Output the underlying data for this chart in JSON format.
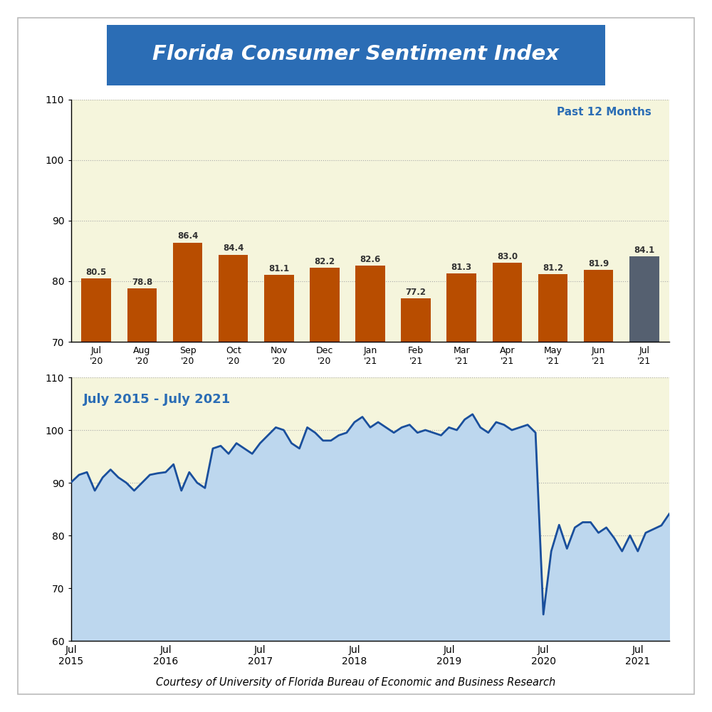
{
  "title": "Florida Consumer Sentiment Index",
  "title_bg_color": "#2B6DB5",
  "title_text_color": "#FFFFFF",
  "bar_categories": [
    "Jul\n'20",
    "Aug\n'20",
    "Sep\n'20",
    "Oct\n'20",
    "Nov\n'20",
    "Dec\n'20",
    "Jan\n'21",
    "Feb\n'21",
    "Mar\n'21",
    "Apr\n'21",
    "May\n'21",
    "Jun\n'21",
    "Jul\n'21"
  ],
  "bar_values": [
    80.5,
    78.8,
    86.4,
    84.4,
    81.1,
    82.2,
    82.6,
    77.2,
    81.3,
    83.0,
    81.2,
    81.9,
    84.1
  ],
  "bar_colors": [
    "#B84D00",
    "#B84D00",
    "#B84D00",
    "#B84D00",
    "#B84D00",
    "#B84D00",
    "#B84D00",
    "#B84D00",
    "#B84D00",
    "#B84D00",
    "#B84D00",
    "#B84D00",
    "#556070"
  ],
  "bar_ylim": [
    70,
    110
  ],
  "bar_yticks": [
    70,
    80,
    90,
    100,
    110
  ],
  "bar_bg_color": "#F5F5DC",
  "bar_label": "Past 12 Months",
  "bar_label_color": "#2B6DB5",
  "line_label": "July 2015 - July 2021",
  "line_label_color": "#2B6DB5",
  "line_color": "#1A4F9C",
  "line_fill_color": "#BDD7EE",
  "line_bg_color": "#F5F5DC",
  "line_ylim": [
    60,
    110
  ],
  "line_yticks": [
    60,
    70,
    80,
    90,
    100,
    110
  ],
  "line_xtick_labels": [
    "Jul\n2015",
    "Jul\n2016",
    "Jul\n2017",
    "Jul\n2018",
    "Jul\n2019",
    "Jul\n2020",
    "Jul\n2021"
  ],
  "line_xtick_positions": [
    0,
    12,
    24,
    36,
    48,
    60,
    72
  ],
  "line_data": [
    90.1,
    91.5,
    92.0,
    88.5,
    91.0,
    92.5,
    91.0,
    90.0,
    88.5,
    90.0,
    91.5,
    91.8,
    92.0,
    93.5,
    88.5,
    92.0,
    90.0,
    89.0,
    96.5,
    97.0,
    95.5,
    97.5,
    96.5,
    95.5,
    97.5,
    99.0,
    100.5,
    100.0,
    97.5,
    96.5,
    100.5,
    99.5,
    98.0,
    98.0,
    99.0,
    99.5,
    101.5,
    102.5,
    100.5,
    101.5,
    100.5,
    99.5,
    100.5,
    101.0,
    99.5,
    100.0,
    99.5,
    99.0,
    100.5,
    100.0,
    102.0,
    103.0,
    100.5,
    99.5,
    101.5,
    101.0,
    100.0,
    100.5,
    101.0,
    99.5,
    65.0,
    77.0,
    82.0,
    77.5,
    81.5,
    82.5,
    82.5,
    80.5,
    81.5,
    79.5,
    77.0,
    80.0,
    77.0,
    80.5,
    81.2,
    81.9,
    84.1
  ],
  "footnote": "Courtesy of University of Florida Bureau of Economic and Business Research",
  "footnote_fontsize": 10.5,
  "outer_bg_color": "#FFFFFF",
  "border_color": "#BBBBBB"
}
